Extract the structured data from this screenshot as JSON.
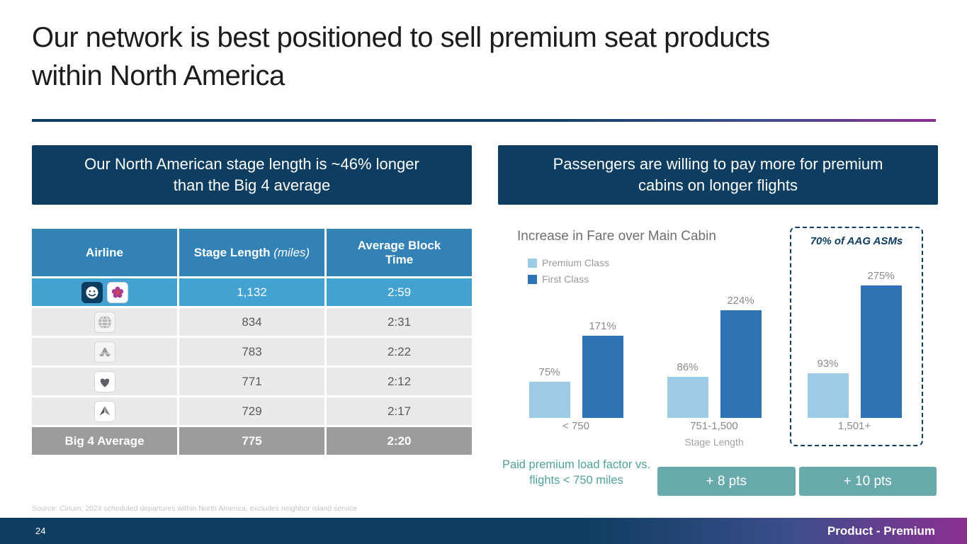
{
  "slide": {
    "title": "Our network is best positioned to sell premium seat products within North America",
    "page_number": "24",
    "footer_label": "Product - Premium",
    "source_note": "Source: Cirium; 2024 scheduled departures within North America, excludes neighbor island service"
  },
  "left_panel": {
    "header": "Our North American stage length is ~46% longer than the Big 4 average",
    "table": {
      "header": {
        "airline": "Airline",
        "stage": "Stage Length",
        "stage_unit": "(miles)",
        "block": "Average Block Time"
      },
      "rows": [
        {
          "icons": "alaska-airlines-logo, hawaiian-airlines-logo",
          "label": "",
          "stage": "1,132",
          "block": "2:59"
        },
        {
          "icons": "united-airlines-globe-logo",
          "label": "",
          "stage": "834",
          "block": "2:31"
        },
        {
          "icons": "american-airlines-logo",
          "label": "",
          "stage": "783",
          "block": "2:22"
        },
        {
          "icons": "southwest-airlines-heart-logo",
          "label": "",
          "stage": "771",
          "block": "2:12"
        },
        {
          "icons": "delta-airlines-widget-logo",
          "label": "",
          "stage": "729",
          "block": "2:17"
        },
        {
          "icons": "",
          "label": "Big 4 Average",
          "stage": "775",
          "block": "2:20"
        }
      ]
    }
  },
  "right_panel": {
    "header": "Passengers are willing to pay more for premium cabins on longer flights",
    "note": "Paid premium load factor vs. flights < 750 miles",
    "badges": [
      "+ 8 pts",
      "+ 10 pts"
    ]
  },
  "chart_data": {
    "type": "bar",
    "title": "Increase in Fare over Main Cabin",
    "categories": [
      "< 750",
      "751-1,500",
      "1,501+"
    ],
    "series": [
      {
        "name": "Premium Class",
        "values": [
          75,
          86,
          93
        ],
        "color": "#9dcbe6"
      },
      {
        "name": "First Class",
        "values": [
          171,
          224,
          275
        ],
        "color": "#2e74b5"
      }
    ],
    "value_suffix": "%",
    "xlabel": "Stage Length",
    "ylim": [
      0,
      300
    ],
    "grid": false,
    "legend_position": "top-left",
    "annotation": "70% of AAG ASMs"
  }
}
